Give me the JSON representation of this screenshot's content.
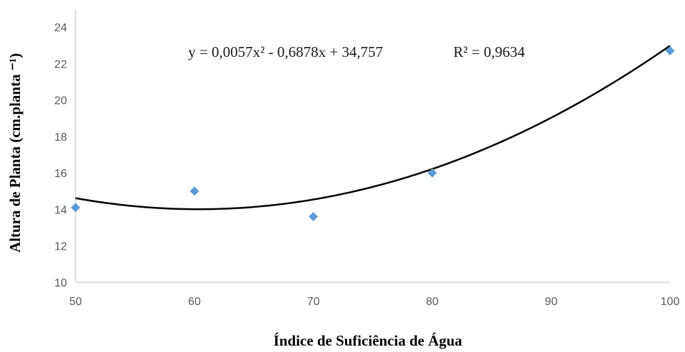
{
  "chart_data": {
    "type": "scatter",
    "xlabel": "Índice de Suficiência de Água",
    "ylabel": "Altura de Planta  (cm.planta ⁻¹)",
    "xlim": [
      50,
      100
    ],
    "ylim": [
      10,
      24
    ],
    "x_ticks": [
      50,
      60,
      70,
      80,
      90,
      100
    ],
    "y_ticks": [
      10,
      12,
      14,
      16,
      18,
      20,
      22,
      24
    ],
    "grid": false,
    "legend": "none",
    "series": [
      {
        "points": [
          {
            "x": 50,
            "y": 14.1
          },
          {
            "x": 60,
            "y": 15.0
          },
          {
            "x": 70,
            "y": 13.6
          },
          {
            "x": 80,
            "y": 16.0
          },
          {
            "x": 100,
            "y": 22.7
          }
        ],
        "marker": "diamond",
        "color": "#5b9bd5"
      }
    ],
    "trendline": {
      "type": "polynomial",
      "coefficients": [
        0.0057,
        -0.6878,
        34.757
      ],
      "equation": "y = 0,0057x² - 0,6878x + 34,757",
      "r_squared": "R² = 0,9634",
      "color": "#000000"
    }
  }
}
